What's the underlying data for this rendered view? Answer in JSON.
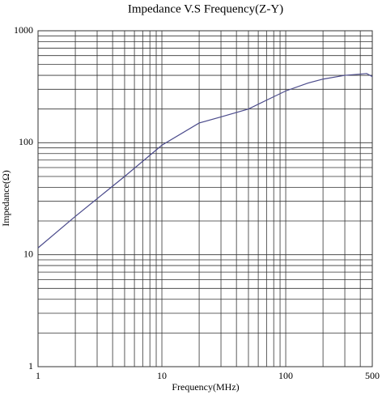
{
  "chart_data": {
    "type": "line",
    "title": "Impedance V.S Frequency(Z-Y)",
    "x_label": "Frequency(MHz)",
    "y_label": "Impedance(Ω)",
    "log_x": true,
    "log_y": true,
    "grid": true,
    "xlim": [
      1,
      500
    ],
    "ylim": [
      1,
      1000
    ],
    "xticks": [
      1,
      10,
      100,
      500
    ],
    "yticks": [
      1,
      10,
      100,
      1000
    ],
    "x_minor_ticks": [
      2,
      3,
      4,
      5,
      6,
      7,
      8,
      9,
      20,
      30,
      40,
      50,
      60,
      70,
      80,
      90,
      200,
      300,
      400
    ],
    "y_minor_ticks": [
      2,
      3,
      4,
      5,
      6,
      7,
      8,
      9,
      20,
      30,
      40,
      50,
      60,
      70,
      80,
      90,
      200,
      300,
      400,
      500,
      600,
      700,
      800,
      900
    ],
    "series": [
      {
        "color": "#4b4b8c",
        "x": [
          1,
          2,
          5,
          10,
          20,
          30,
          50,
          70,
          100,
          150,
          200,
          300,
          400,
          450,
          500
        ],
        "values": [
          11.5,
          22,
          50,
          95,
          150,
          170,
          200,
          240,
          290,
          340,
          370,
          400,
          410,
          415,
          390
        ]
      }
    ]
  }
}
